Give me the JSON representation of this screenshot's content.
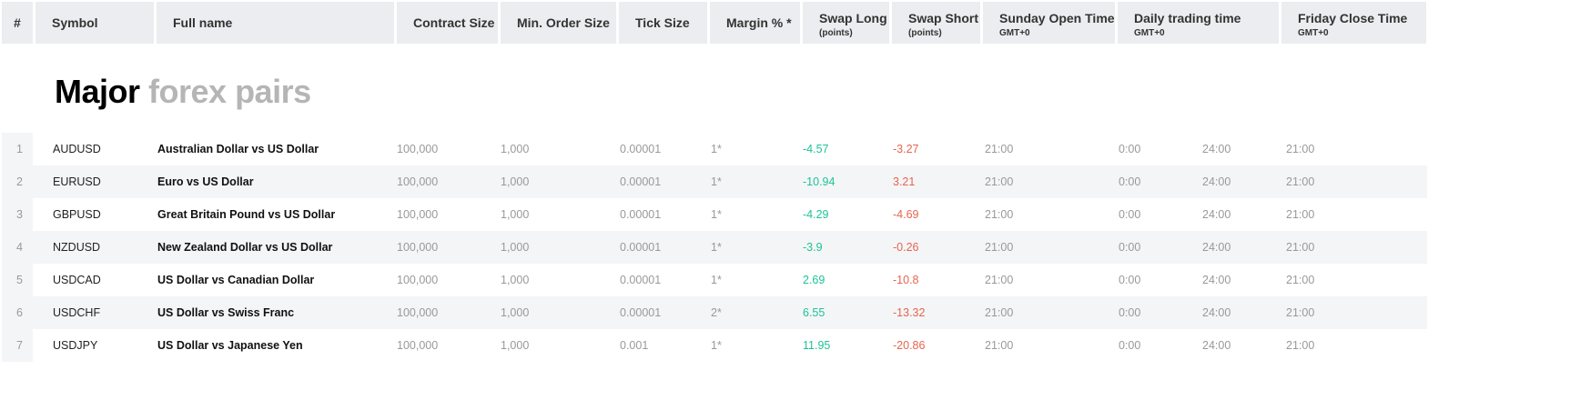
{
  "header": [
    {
      "label": "#"
    },
    {
      "label": "Symbol"
    },
    {
      "label": "Full name"
    },
    {
      "label": "Contract Size"
    },
    {
      "label": "Min. Order Size"
    },
    {
      "label": "Tick Size"
    },
    {
      "label": "Margin % *"
    },
    {
      "label": "Swap Long",
      "sub": "(points)"
    },
    {
      "label": "Swap Short",
      "sub": "(points)"
    },
    {
      "label": "Sunday Open Time",
      "sub": "GMT+0"
    },
    {
      "label": "Daily trading time",
      "sub": "GMT+0"
    },
    {
      "label": "Friday Close Time",
      "sub": "GMT+0"
    }
  ],
  "section": {
    "title_bold": "Major",
    "title_light": "forex pairs"
  },
  "colors": {
    "positive": "#1dc398",
    "negative": "#e5654f",
    "header_bg": "#ecedf0",
    "alt_row_bg": "#f4f5f7"
  },
  "rows": [
    {
      "n": "1",
      "symbol": "AUDUSD",
      "name": "Australian Dollar vs US Dollar",
      "contract": "100,000",
      "min": "1,000",
      "tick": "0.00001",
      "margin": "1*",
      "swap_long": "-4.57",
      "swap_short": "-3.27",
      "sunday": "21:00",
      "daily_from": "0:00",
      "daily_to": "24:00",
      "friday": "21:00"
    },
    {
      "n": "2",
      "symbol": "EURUSD",
      "name": "Euro vs US Dollar",
      "contract": "100,000",
      "min": "1,000",
      "tick": "0.00001",
      "margin": "1*",
      "swap_long": "-10.94",
      "swap_short": "3.21",
      "sunday": "21:00",
      "daily_from": "0:00",
      "daily_to": "24:00",
      "friday": "21:00"
    },
    {
      "n": "3",
      "symbol": "GBPUSD",
      "name": "Great Britain Pound vs US Dollar",
      "contract": "100,000",
      "min": "1,000",
      "tick": "0.00001",
      "margin": "1*",
      "swap_long": "-4.29",
      "swap_short": "-4.69",
      "sunday": "21:00",
      "daily_from": "0:00",
      "daily_to": "24:00",
      "friday": "21:00"
    },
    {
      "n": "4",
      "symbol": "NZDUSD",
      "name": "New Zealand Dollar vs US Dollar",
      "contract": "100,000",
      "min": "1,000",
      "tick": "0.00001",
      "margin": "1*",
      "swap_long": "-3.9",
      "swap_short": "-0.26",
      "sunday": "21:00",
      "daily_from": "0:00",
      "daily_to": "24:00",
      "friday": "21:00"
    },
    {
      "n": "5",
      "symbol": "USDCAD",
      "name": "US Dollar vs Canadian Dollar",
      "contract": "100,000",
      "min": "1,000",
      "tick": "0.00001",
      "margin": "1*",
      "swap_long": "2.69",
      "swap_short": "-10.8",
      "sunday": "21:00",
      "daily_from": "0:00",
      "daily_to": "24:00",
      "friday": "21:00"
    },
    {
      "n": "6",
      "symbol": "USDCHF",
      "name": "US Dollar vs Swiss Franc",
      "contract": "100,000",
      "min": "1,000",
      "tick": "0.00001",
      "margin": "2*",
      "swap_long": "6.55",
      "swap_short": "-13.32",
      "sunday": "21:00",
      "daily_from": "0:00",
      "daily_to": "24:00",
      "friday": "21:00"
    },
    {
      "n": "7",
      "symbol": "USDJPY",
      "name": "US Dollar vs Japanese Yen",
      "contract": "100,000",
      "min": "1,000",
      "tick": "0.001",
      "margin": "1*",
      "swap_long": "11.95",
      "swap_short": "-20.86",
      "sunday": "21:00",
      "daily_from": "0:00",
      "daily_to": "24:00",
      "friday": "21:00"
    }
  ]
}
